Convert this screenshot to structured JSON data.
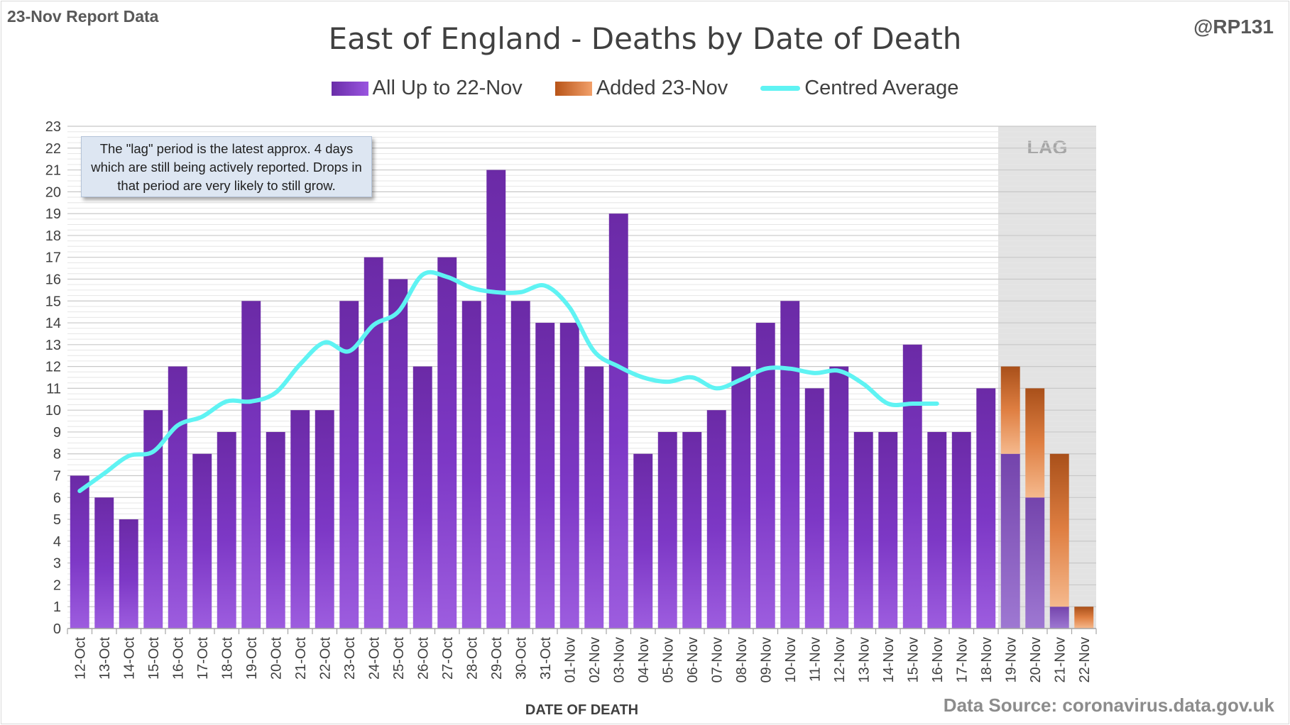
{
  "header": {
    "report_label": "23-Nov Report Data",
    "handle": "@RP131",
    "source": "Data Source: coronavirus.data.gov.uk"
  },
  "note": "The \"lag\" period is the latest approx. 4 days which are still being actively reported. Drops in that period are very likely to still grow.",
  "lag_label": "LAG",
  "colors": {
    "existing": "#7a35c0",
    "added": "#d8733a",
    "average": "#5ff3f3",
    "lag_shade": "#e3e3e3"
  },
  "chart_data": {
    "type": "bar",
    "title": "East of England - Deaths by Date of Death",
    "xlabel": "DATE OF DEATH",
    "ylabel": "",
    "ylim": [
      0,
      23
    ],
    "yticks": [
      0,
      1,
      2,
      3,
      4,
      5,
      6,
      7,
      8,
      9,
      10,
      11,
      12,
      13,
      14,
      15,
      16,
      17,
      18,
      19,
      20,
      21,
      22,
      23
    ],
    "grid": true,
    "legend_position": "top",
    "stacked": true,
    "lag_categories": [
      "19-Nov",
      "20-Nov",
      "21-Nov",
      "22-Nov"
    ],
    "categories": [
      "12-Oct",
      "13-Oct",
      "14-Oct",
      "15-Oct",
      "16-Oct",
      "17-Oct",
      "18-Oct",
      "19-Oct",
      "20-Oct",
      "21-Oct",
      "22-Oct",
      "23-Oct",
      "24-Oct",
      "25-Oct",
      "26-Oct",
      "27-Oct",
      "28-Oct",
      "29-Oct",
      "30-Oct",
      "31-Oct",
      "01-Nov",
      "02-Nov",
      "03-Nov",
      "04-Nov",
      "05-Nov",
      "06-Nov",
      "07-Nov",
      "08-Nov",
      "09-Nov",
      "10-Nov",
      "11-Nov",
      "12-Nov",
      "13-Nov",
      "14-Nov",
      "15-Nov",
      "16-Nov",
      "17-Nov",
      "18-Nov",
      "19-Nov",
      "20-Nov",
      "21-Nov",
      "22-Nov"
    ],
    "series": [
      {
        "name": "All Up to 22-Nov",
        "values": [
          7,
          6,
          5,
          10,
          12,
          8,
          9,
          15,
          9,
          10,
          10,
          15,
          17,
          16,
          12,
          17,
          15,
          21,
          15,
          14,
          14,
          12,
          19,
          8,
          9,
          9,
          10,
          12,
          14,
          15,
          11,
          12,
          9,
          9,
          13,
          9,
          9,
          11,
          8,
          6,
          1,
          0
        ]
      },
      {
        "name": "Added 23-Nov",
        "values": [
          0,
          0,
          0,
          0,
          0,
          0,
          0,
          0,
          0,
          0,
          0,
          0,
          0,
          0,
          0,
          0,
          0,
          0,
          0,
          0,
          0,
          0,
          0,
          0,
          0,
          0,
          0,
          0,
          0,
          0,
          0,
          0,
          0,
          0,
          0,
          0,
          0,
          0,
          4,
          5,
          7,
          1
        ]
      },
      {
        "name": "Centred Average",
        "type": "line",
        "values": [
          6.3,
          7.1,
          7.9,
          8.1,
          9.3,
          9.7,
          10.4,
          10.4,
          10.8,
          12.1,
          13.1,
          12.7,
          13.9,
          14.5,
          16.2,
          16.1,
          15.6,
          15.4,
          15.4,
          15.7,
          14.7,
          12.7,
          12.0,
          11.5,
          11.3,
          11.5,
          11.0,
          11.4,
          11.9,
          11.9,
          11.7,
          11.8,
          11.2,
          10.3,
          10.3,
          10.3,
          null,
          null,
          null,
          null,
          null,
          null
        ]
      }
    ]
  }
}
